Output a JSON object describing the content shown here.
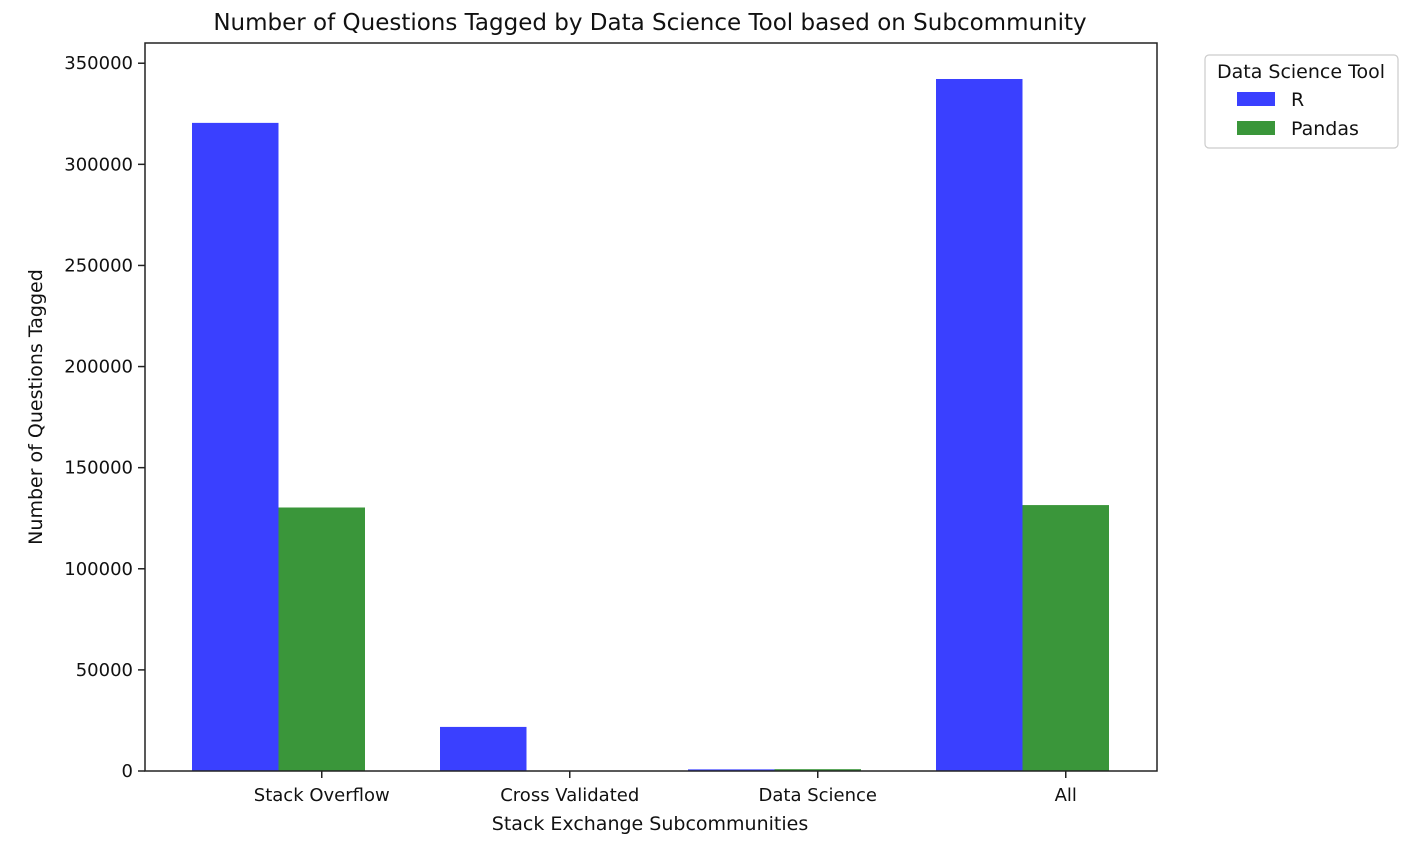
{
  "chart_data": {
    "type": "bar",
    "title": "Number of Questions Tagged by Data Science Tool based on Subcommunity",
    "xlabel": "Stack Exchange Subcommunities",
    "ylabel": "Number of Questions Tagged",
    "categories": [
      "Stack Overflow",
      "Cross Validated",
      "Data Science",
      "All"
    ],
    "series": [
      {
        "name": "R",
        "values": [
          320500,
          21800,
          800,
          342200
        ],
        "color": "#3a40ff"
      },
      {
        "name": "Pandas",
        "values": [
          130300,
          0,
          900,
          131500
        ],
        "color": "#3a963a"
      }
    ],
    "ylim": [
      0,
      360000
    ],
    "yticks": [
      0,
      50000,
      100000,
      150000,
      200000,
      250000,
      300000,
      350000
    ],
    "ytick_labels": [
      "0",
      "50000",
      "100000",
      "150000",
      "200000",
      "250000",
      "300000",
      "350000"
    ],
    "grid": false,
    "legend": {
      "title": "Data Science Tool",
      "placement": "outside-top-right"
    }
  }
}
